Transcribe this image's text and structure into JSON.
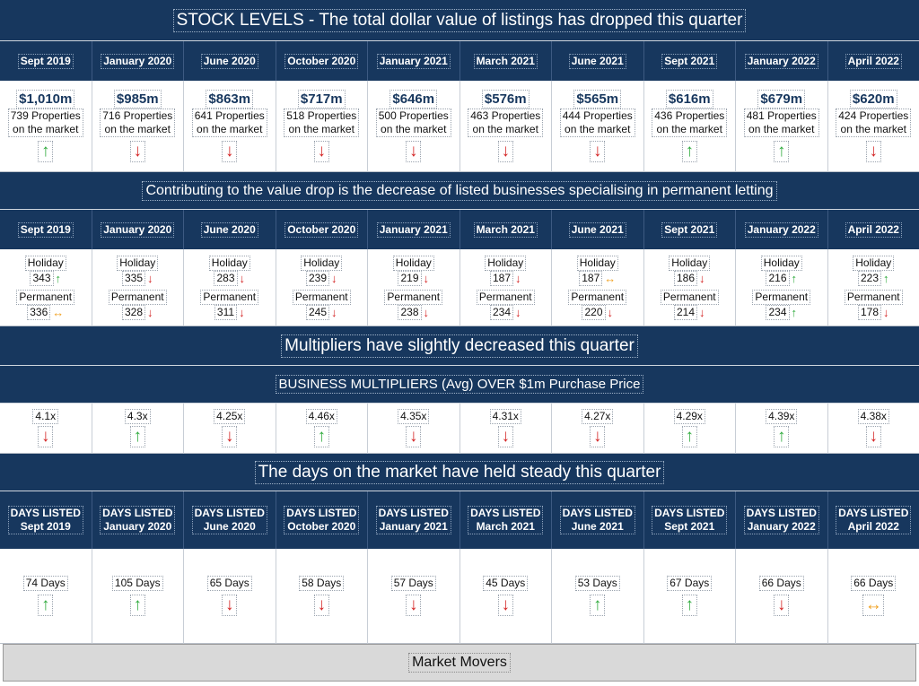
{
  "stock": {
    "title": "STOCK LEVELS - The total dollar value of listings has dropped this quarter",
    "periods": [
      "Sept 2019",
      "January 2020",
      "June 2020",
      "October 2020",
      "January 2021",
      "March 2021",
      "June 2021",
      "Sept 2021",
      "January 2022",
      "April 2022"
    ],
    "cells": [
      {
        "value": "$1,010m",
        "line1": "739 Properties",
        "line2": "on the market",
        "trend": "up"
      },
      {
        "value": "$985m",
        "line1": "716 Properties",
        "line2": "on the market",
        "trend": "down"
      },
      {
        "value": "$863m",
        "line1": "641 Properties",
        "line2": "on the market",
        "trend": "down"
      },
      {
        "value": "$717m",
        "line1": "518 Properties",
        "line2": "on the market",
        "trend": "down"
      },
      {
        "value": "$646m",
        "line1": "500 Properties",
        "line2": "on the market",
        "trend": "down"
      },
      {
        "value": "$576m",
        "line1": "463 Properties",
        "line2": "on the market",
        "trend": "down"
      },
      {
        "value": "$565m",
        "line1": "444 Properties",
        "line2": "on the market",
        "trend": "down"
      },
      {
        "value": "$616m",
        "line1": "436 Properties",
        "line2": "on the market",
        "trend": "up"
      },
      {
        "value": "$679m",
        "line1": "481 Properties",
        "line2": "on the market",
        "trend": "up"
      },
      {
        "value": "$620m",
        "line1": "424 Properties",
        "line2": "on the market",
        "trend": "down"
      }
    ]
  },
  "businesses": {
    "title": "Contributing to the value drop is the decrease of listed businesses specialising in permanent letting",
    "holiday_label": "Holiday",
    "permanent_label": "Permanent",
    "periods": [
      "Sept 2019",
      "January 2020",
      "June 2020",
      "October 2020",
      "January 2021",
      "March 2021",
      "June 2021",
      "Sept 2021",
      "January 2022",
      "April 2022"
    ],
    "cells": [
      {
        "holiday": "343",
        "holiday_trend": "up",
        "permanent": "336",
        "permanent_trend": "flat"
      },
      {
        "holiday": "335",
        "holiday_trend": "down",
        "permanent": "328",
        "permanent_trend": "down"
      },
      {
        "holiday": "283",
        "holiday_trend": "down",
        "permanent": "311",
        "permanent_trend": "down"
      },
      {
        "holiday": "239",
        "holiday_trend": "down",
        "permanent": "245",
        "permanent_trend": "down"
      },
      {
        "holiday": "219",
        "holiday_trend": "down",
        "permanent": "238",
        "permanent_trend": "down"
      },
      {
        "holiday": "187",
        "holiday_trend": "down",
        "permanent": "234",
        "permanent_trend": "down"
      },
      {
        "holiday": "187",
        "holiday_trend": "flat",
        "permanent": "220",
        "permanent_trend": "down"
      },
      {
        "holiday": "186",
        "holiday_trend": "down",
        "permanent": "214",
        "permanent_trend": "down"
      },
      {
        "holiday": "216",
        "holiday_trend": "up",
        "permanent": "234",
        "permanent_trend": "up"
      },
      {
        "holiday": "223",
        "holiday_trend": "up",
        "permanent": "178",
        "permanent_trend": "down"
      }
    ]
  },
  "multipliers": {
    "title": "Multipliers have slightly decreased this quarter",
    "subtitle": "BUSINESS MULTIPLIERS (Avg) OVER $1m Purchase Price",
    "cells": [
      {
        "value": "4.1x",
        "trend": "down"
      },
      {
        "value": "4.3x",
        "trend": "up"
      },
      {
        "value": "4.25x",
        "trend": "down"
      },
      {
        "value": "4.46x",
        "trend": "up"
      },
      {
        "value": "4.35x",
        "trend": "down"
      },
      {
        "value": "4.31x",
        "trend": "down"
      },
      {
        "value": "4.27x",
        "trend": "down"
      },
      {
        "value": "4.29x",
        "trend": "up"
      },
      {
        "value": "4.39x",
        "trend": "up"
      },
      {
        "value": "4.38x",
        "trend": "down"
      }
    ]
  },
  "days": {
    "title": "The days on the market have held steady this quarter",
    "header_prefix": "DAYS LISTED",
    "periods": [
      "Sept 2019",
      "January 2020",
      "June 2020",
      "October 2020",
      "January 2021",
      "March 2021",
      "June 2021",
      "Sept 2021",
      "January 2022",
      "April 2022"
    ],
    "cells": [
      {
        "value": "74 Days",
        "trend": "up"
      },
      {
        "value": "105 Days",
        "trend": "up"
      },
      {
        "value": "65 Days",
        "trend": "down"
      },
      {
        "value": "58 Days",
        "trend": "down"
      },
      {
        "value": "57 Days",
        "trend": "down"
      },
      {
        "value": "45 Days",
        "trend": "down"
      },
      {
        "value": "53 Days",
        "trend": "up"
      },
      {
        "value": "67 Days",
        "trend": "up"
      },
      {
        "value": "66 Days",
        "trend": "down"
      },
      {
        "value": "66 Days",
        "trend": "flat"
      }
    ]
  },
  "market_movers": {
    "label": "Market Movers"
  },
  "colors": {
    "navy": "#17375e",
    "up": "#2eaa3c",
    "down": "#d42424",
    "flat": "#f0a020"
  }
}
